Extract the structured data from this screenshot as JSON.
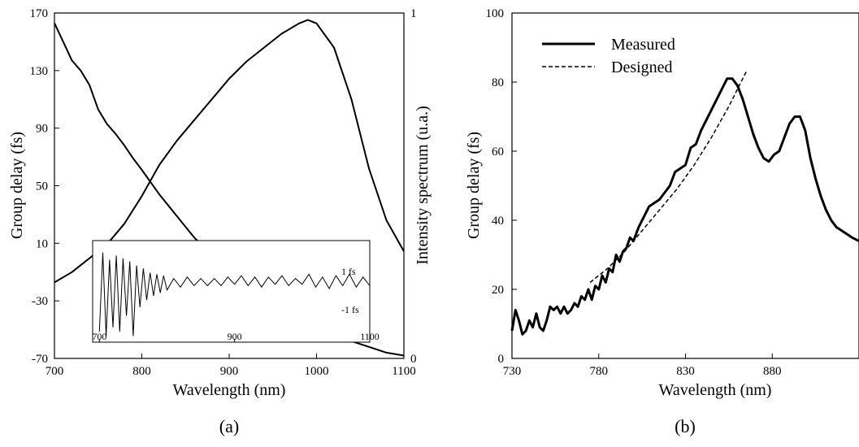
{
  "chart_data": [
    {
      "panel": "(a)",
      "type": "line",
      "xlabel": "Wavelength (nm)",
      "ylabel": "Group delay (fs)",
      "y2label": "Intensity spectrum (u.a.)",
      "xlim": [
        700,
        1100
      ],
      "ylim": [
        -70,
        170
      ],
      "y2lim": [
        0,
        1
      ],
      "xticks": [
        "700",
        "800",
        "900",
        "1000",
        "1100"
      ],
      "yticks": [
        "-70",
        "-30",
        "10",
        "50",
        "90",
        "130",
        "170"
      ],
      "y2ticks": [
        "0",
        "1"
      ],
      "series": [
        {
          "axis": "left",
          "x": [
            700,
            710,
            720,
            730,
            740,
            750,
            760,
            770,
            780,
            790,
            800,
            820,
            840,
            860,
            880,
            900,
            920,
            940,
            960,
            980,
            1000,
            1020,
            1040,
            1060,
            1080,
            1100
          ],
          "y": [
            163,
            150,
            137,
            130,
            120,
            103,
            93,
            86,
            78,
            69,
            61,
            44,
            29,
            14,
            2,
            -9,
            -19,
            -28,
            -35,
            -42,
            -48,
            -53,
            -58,
            -62,
            -66,
            -68
          ]
        },
        {
          "axis": "right",
          "x": [
            700,
            720,
            740,
            760,
            780,
            800,
            820,
            840,
            860,
            880,
            900,
            920,
            940,
            960,
            980,
            990,
            1000,
            1020,
            1040,
            1060,
            1080,
            1100
          ],
          "y": [
            0.22,
            0.25,
            0.29,
            0.33,
            0.39,
            0.47,
            0.56,
            0.63,
            0.69,
            0.75,
            0.81,
            0.86,
            0.9,
            0.94,
            0.97,
            0.98,
            0.97,
            0.9,
            0.75,
            0.55,
            0.4,
            0.31
          ]
        }
      ],
      "inset": {
        "type": "line",
        "xlim": [
          690,
          1100
        ],
        "xticks": [
          "700",
          "900",
          "1100"
        ],
        "ytick_labels": [
          "1 fs",
          "-1 fs"
        ],
        "ylim": [
          -4,
          2.5
        ],
        "x": [
          700,
          705,
          710,
          715,
          720,
          725,
          730,
          735,
          740,
          745,
          750,
          755,
          760,
          765,
          770,
          775,
          780,
          785,
          790,
          795,
          800,
          810,
          820,
          830,
          840,
          850,
          860,
          870,
          880,
          890,
          900,
          910,
          920,
          930,
          940,
          950,
          960,
          970,
          980,
          990,
          1000,
          1010,
          1020,
          1030,
          1040,
          1050,
          1060,
          1070,
          1080,
          1090,
          1100
        ],
        "y": [
          -3.5,
          2.0,
          -3.8,
          1.5,
          -3.2,
          1.8,
          -3.5,
          1.6,
          -2.4,
          1.4,
          -3.8,
          1.1,
          -1.8,
          0.9,
          -1.3,
          0.6,
          -1.0,
          0.5,
          -0.8,
          0.4,
          -0.6,
          0.2,
          -0.4,
          0.3,
          -0.3,
          0.2,
          -0.3,
          0.2,
          -0.3,
          0.3,
          -0.2,
          0.4,
          -0.3,
          0.3,
          -0.4,
          0.3,
          -0.2,
          0.4,
          -0.3,
          0.2,
          -0.2,
          0.5,
          -0.4,
          0.3,
          -0.5,
          0.4,
          -0.3,
          0.5,
          -0.4,
          0.3,
          -0.3
        ]
      }
    },
    {
      "panel": "(b)",
      "type": "line",
      "xlabel": "Wavelength (nm)",
      "ylabel": "Group delay (fs)",
      "xlim": [
        730,
        930
      ],
      "ylim": [
        0,
        100
      ],
      "xticks": [
        "730",
        "780",
        "830",
        "880"
      ],
      "yticks": [
        "0",
        "20",
        "40",
        "60",
        "80",
        "100"
      ],
      "legend_position": "top-left",
      "series": [
        {
          "name": "Measured",
          "style": "solid",
          "x": [
            730,
            732,
            734,
            736,
            738,
            740,
            742,
            744,
            746,
            748,
            750,
            752,
            754,
            756,
            758,
            760,
            762,
            764,
            766,
            768,
            770,
            772,
            774,
            776,
            778,
            780,
            782,
            784,
            786,
            788,
            790,
            792,
            794,
            796,
            798,
            800,
            803,
            806,
            809,
            812,
            815,
            818,
            821,
            824,
            827,
            830,
            833,
            836,
            839,
            842,
            845,
            848,
            851,
            854,
            857,
            860,
            863,
            866,
            869,
            872,
            875,
            878,
            881,
            884,
            887,
            890,
            893,
            896,
            899,
            902,
            905,
            908,
            911,
            914,
            917,
            920,
            923,
            926,
            930
          ],
          "y": [
            8,
            14,
            11,
            7,
            8,
            11,
            9,
            13,
            9,
            8,
            11,
            15,
            14,
            15,
            13,
            15,
            13,
            14,
            16,
            15,
            18,
            17,
            20,
            17,
            21,
            20,
            24,
            22,
            26,
            25,
            30,
            28,
            31,
            32,
            35,
            34,
            38,
            41,
            44,
            45,
            46,
            48,
            50,
            54,
            55,
            56,
            61,
            62,
            66,
            69,
            72,
            75,
            78,
            81,
            81,
            79,
            75,
            70,
            65,
            61,
            58,
            57,
            59,
            60,
            64,
            68,
            70,
            70,
            66,
            58,
            52,
            47,
            43,
            40,
            38,
            37,
            36,
            35,
            34
          ]
        },
        {
          "name": "Designed",
          "style": "dashed",
          "x": [
            775,
            785,
            795,
            805,
            815,
            825,
            835,
            845,
            855,
            865
          ],
          "y": [
            22,
            26,
            31,
            37,
            43,
            49,
            56,
            64,
            73,
            83
          ]
        }
      ]
    }
  ],
  "captions": {
    "a": "(a)",
    "b": "(b)"
  }
}
